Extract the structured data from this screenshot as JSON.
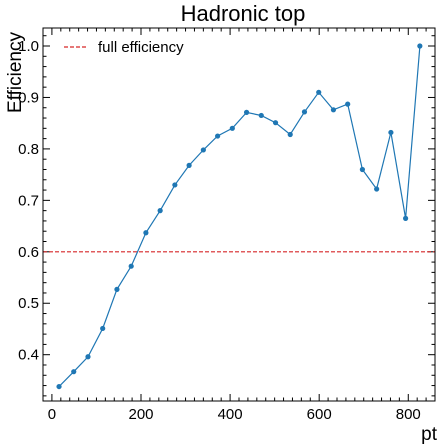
{
  "colors": {
    "series": "#1f77b4",
    "reference_line": "#d62728",
    "axes": "#000000"
  },
  "chart_data": {
    "type": "line",
    "title": "Hadronic top",
    "xlabel": "pt",
    "ylabel": "Efficiency",
    "xlim": [
      -20,
      860
    ],
    "ylim": [
      0.31,
      1.035
    ],
    "xticks": [
      0,
      200,
      400,
      600,
      800
    ],
    "xtick_labels": [
      "0",
      "200",
      "400",
      "600",
      "800"
    ],
    "yticks": [
      0.4,
      0.5,
      0.6,
      0.7,
      0.8,
      0.9,
      1.0
    ],
    "ytick_labels": [
      "0.4",
      "0.5",
      "0.6",
      "0.7",
      "0.8",
      "0.9",
      "1.0"
    ],
    "grid": false,
    "legend_position": "top-left",
    "series": [
      {
        "x": [
          16,
          49,
          81,
          114,
          146,
          178,
          211,
          243,
          276,
          308,
          340,
          372,
          405,
          437,
          470,
          502,
          535,
          567,
          599,
          632,
          664,
          697,
          729,
          761,
          794,
          826
        ],
        "y": [
          0.338,
          0.367,
          0.396,
          0.451,
          0.527,
          0.572,
          0.637,
          0.68,
          0.73,
          0.768,
          0.798,
          0.825,
          0.84,
          0.871,
          0.865,
          0.851,
          0.828,
          0.872,
          0.91,
          0.876,
          0.887,
          0.76,
          0.722,
          0.832,
          0.665,
          1.0
        ]
      }
    ],
    "reference_lines": [
      {
        "name": "full efficiency",
        "y": 0.6,
        "style": "dashed"
      }
    ]
  }
}
